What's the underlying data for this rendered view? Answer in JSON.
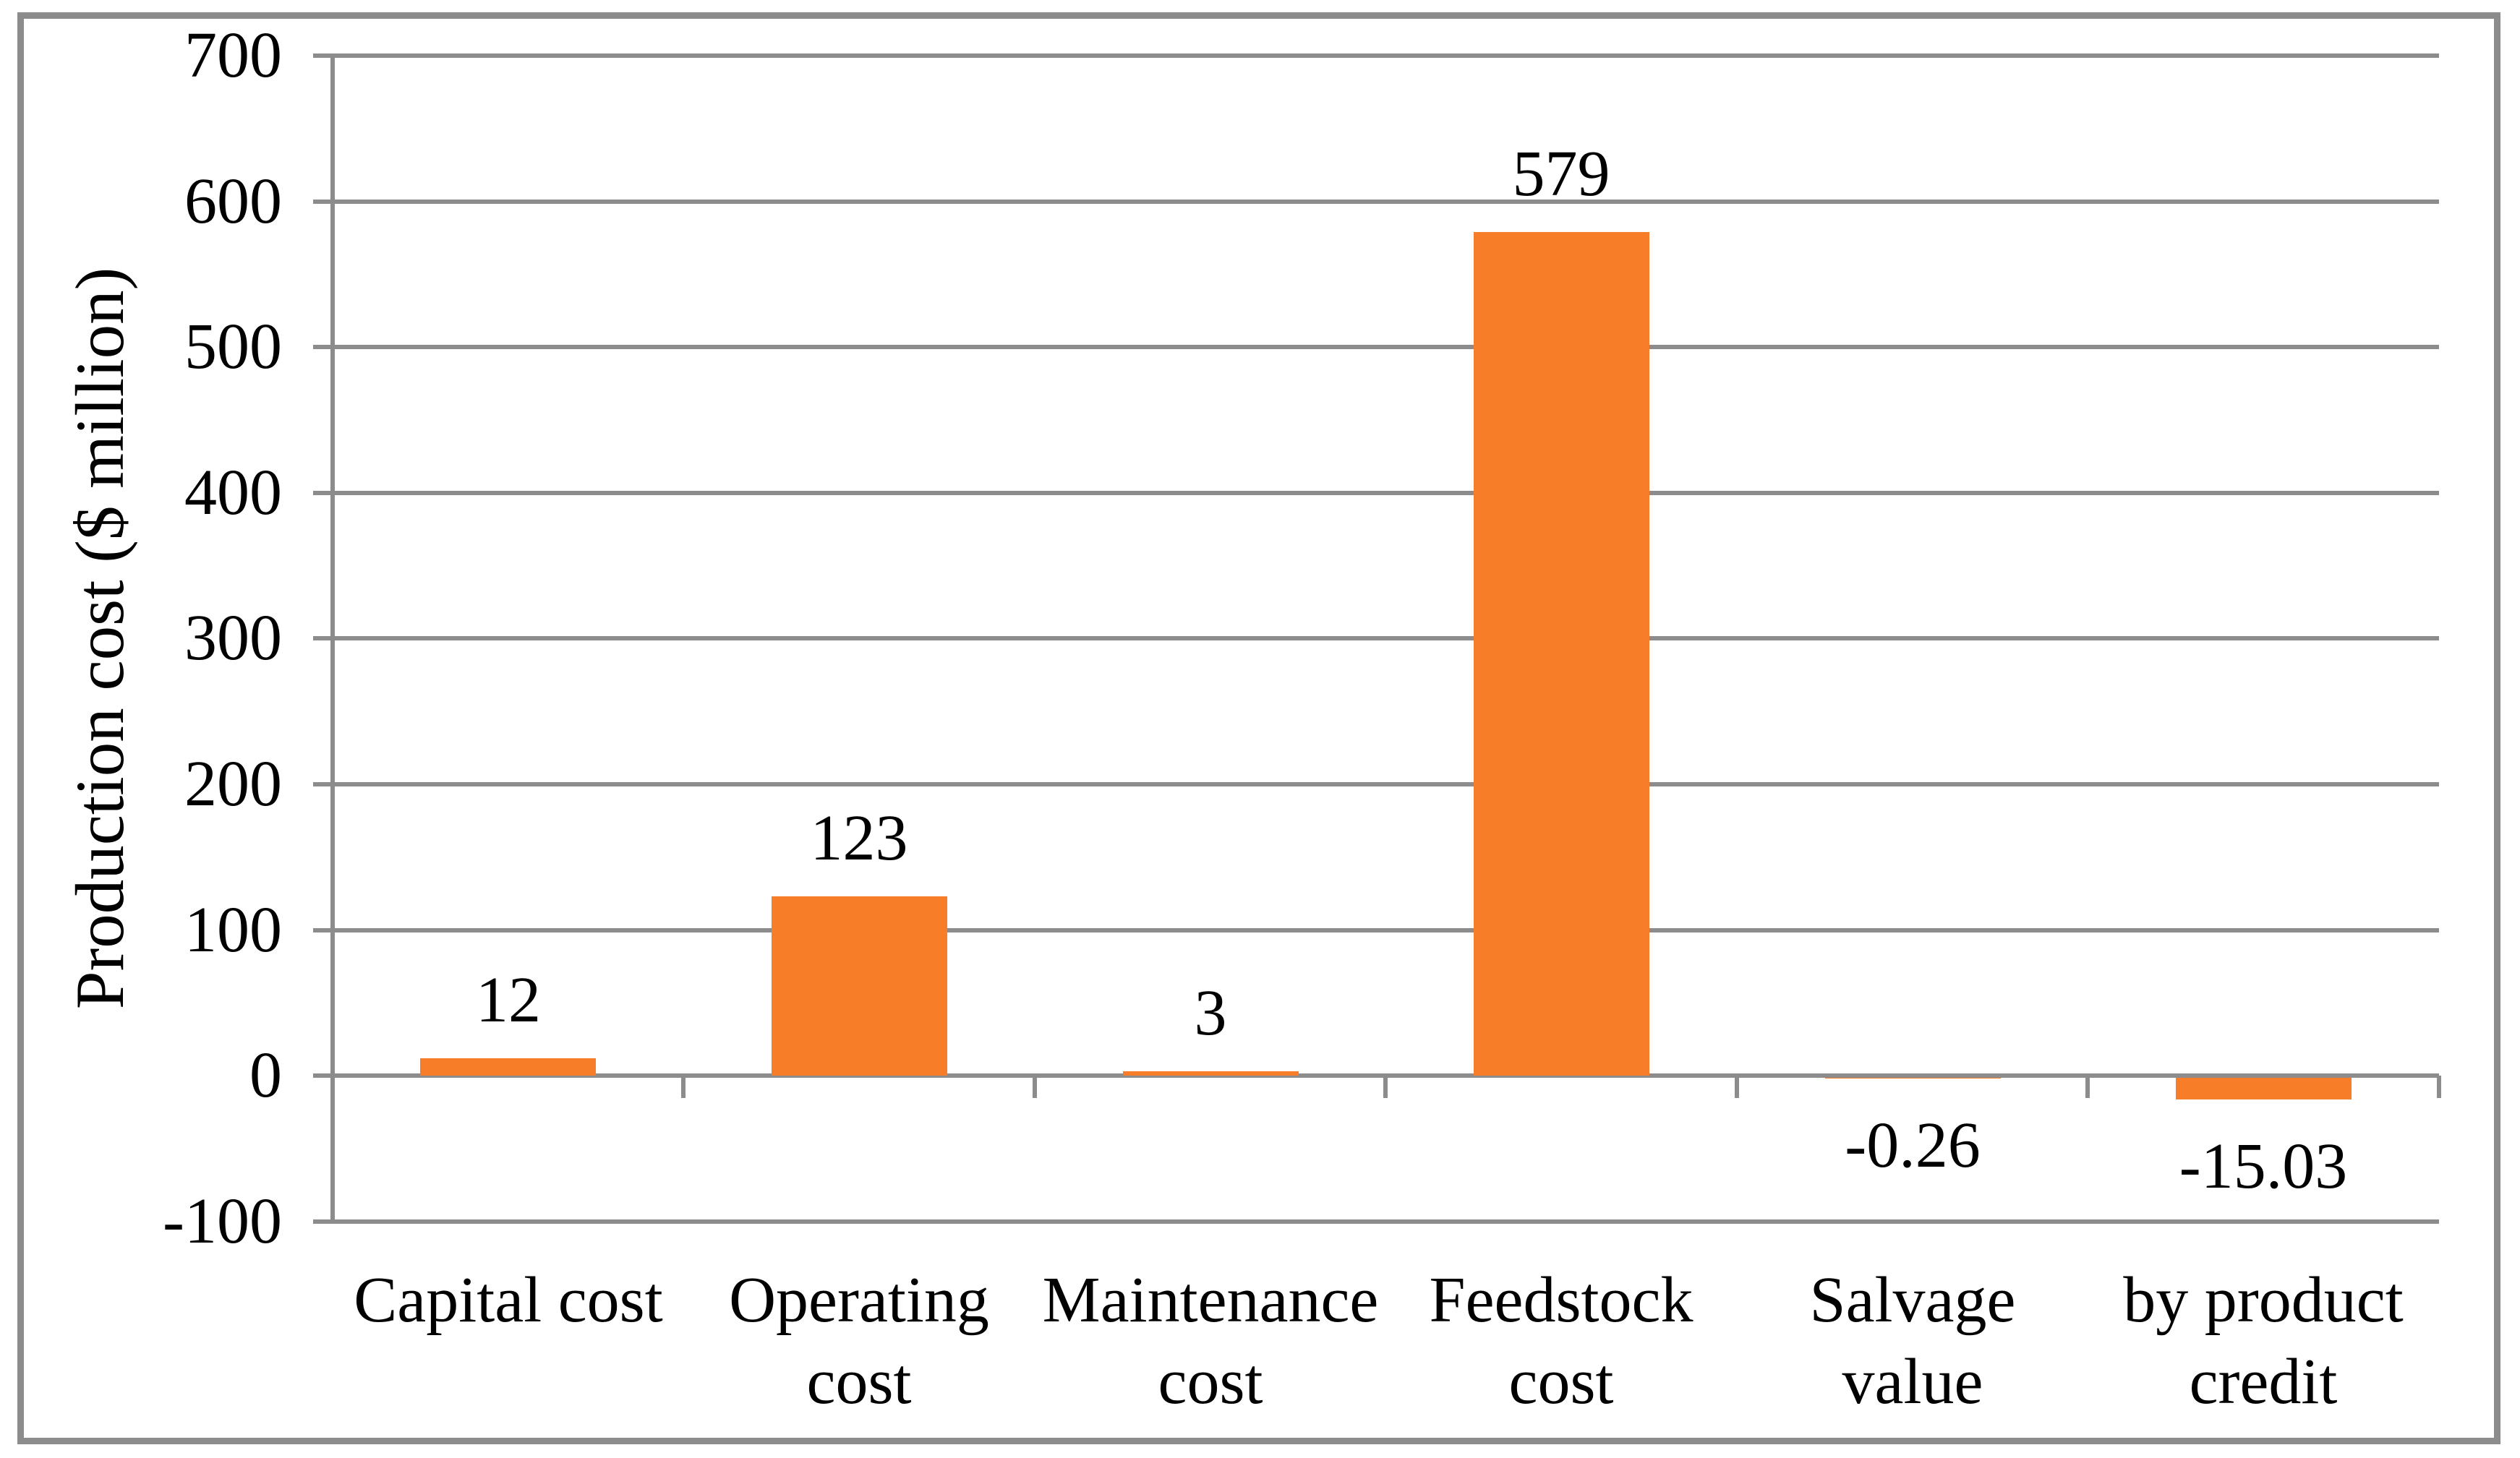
{
  "chart_data": {
    "type": "bar",
    "title": "",
    "xlabel": "",
    "ylabel": "Production cost ($ million)",
    "categories": [
      "Capital cost",
      "Operating\ncost",
      "Maintenance\ncost",
      "Feedstock\ncost",
      "Salvage\nvalue",
      "by product\ncredit"
    ],
    "values": [
      12,
      123,
      3,
      579,
      -0.26,
      -15.03
    ],
    "data_labels": [
      "12",
      "123",
      "3",
      "579",
      "-0.26",
      "-15.03"
    ],
    "ylim": [
      -100,
      700
    ],
    "ytick_interval": 100,
    "ytick_labels": [
      "700",
      "600",
      "500",
      "400",
      "300",
      "200",
      "100",
      "0",
      "-100"
    ],
    "grid": true,
    "legend": "none",
    "series_name": "Production cost",
    "bar_color": "#F87D28",
    "line_color": "#8C8C8C",
    "text_color": "#000000",
    "background_color": "#FFFFFF"
  }
}
